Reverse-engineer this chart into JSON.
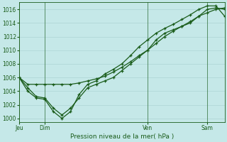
{
  "xlabel": "Pression niveau de la mer( hPa )",
  "ylim": [
    999.5,
    1017.0
  ],
  "yticks": [
    1000,
    1002,
    1004,
    1006,
    1008,
    1010,
    1012,
    1014,
    1016
  ],
  "day_labels": [
    "Jeu",
    "Dim",
    "Ven",
    "Sam"
  ],
  "day_positions": [
    0.0,
    1.5,
    7.5,
    11.0
  ],
  "bg_color": "#c5e8e8",
  "grid_color": "#a8d0d0",
  "line_color": "#1a5c1a",
  "series1_x": [
    0.0,
    0.5,
    1.0,
    1.5,
    2.0,
    2.5,
    3.0,
    3.5,
    4.0,
    4.5,
    5.0,
    5.5,
    6.0,
    6.5,
    7.0,
    7.5,
    8.0,
    8.5,
    9.0,
    9.5,
    10.0,
    10.5,
    11.0,
    11.5,
    12.0
  ],
  "series1_y": [
    1006.0,
    1005.0,
    1005.0,
    1005.0,
    1005.0,
    1005.0,
    1005.0,
    1005.2,
    1005.5,
    1005.8,
    1006.2,
    1006.8,
    1007.5,
    1008.3,
    1009.2,
    1010.0,
    1011.0,
    1012.0,
    1012.8,
    1013.5,
    1014.2,
    1015.0,
    1015.5,
    1016.0,
    1016.2
  ],
  "series2_x": [
    0.0,
    0.5,
    1.0,
    1.5,
    2.0,
    2.5,
    3.0,
    3.5,
    4.0,
    4.5,
    5.0,
    5.5,
    6.0,
    6.5,
    7.0,
    7.5,
    8.0,
    8.5,
    9.0,
    9.5,
    10.0,
    10.5,
    11.0,
    11.5,
    12.0
  ],
  "series2_y": [
    1006.0,
    1004.5,
    1003.2,
    1003.0,
    1001.5,
    1000.5,
    1001.5,
    1003.0,
    1004.5,
    1005.0,
    1005.5,
    1006.0,
    1007.0,
    1008.0,
    1009.0,
    1010.0,
    1011.5,
    1012.5,
    1013.0,
    1013.5,
    1014.0,
    1015.0,
    1016.0,
    1016.2,
    1016.0
  ],
  "series3_x": [
    0.0,
    0.5,
    1.0,
    1.5,
    2.0,
    2.5,
    3.0,
    3.5,
    4.0,
    4.5,
    5.0,
    5.5,
    6.0,
    6.5,
    7.0,
    7.5,
    8.0,
    8.5,
    9.0,
    9.5,
    10.0,
    10.5,
    11.0,
    11.5,
    12.0
  ],
  "series3_y": [
    1006.0,
    1004.0,
    1003.0,
    1002.8,
    1001.0,
    1000.0,
    1001.0,
    1003.5,
    1005.0,
    1005.5,
    1006.5,
    1007.2,
    1008.0,
    1009.2,
    1010.5,
    1011.5,
    1012.5,
    1013.2,
    1013.8,
    1014.5,
    1015.2,
    1016.0,
    1016.5,
    1016.5,
    1015.0
  ],
  "xlim": [
    0.0,
    12.0
  ]
}
